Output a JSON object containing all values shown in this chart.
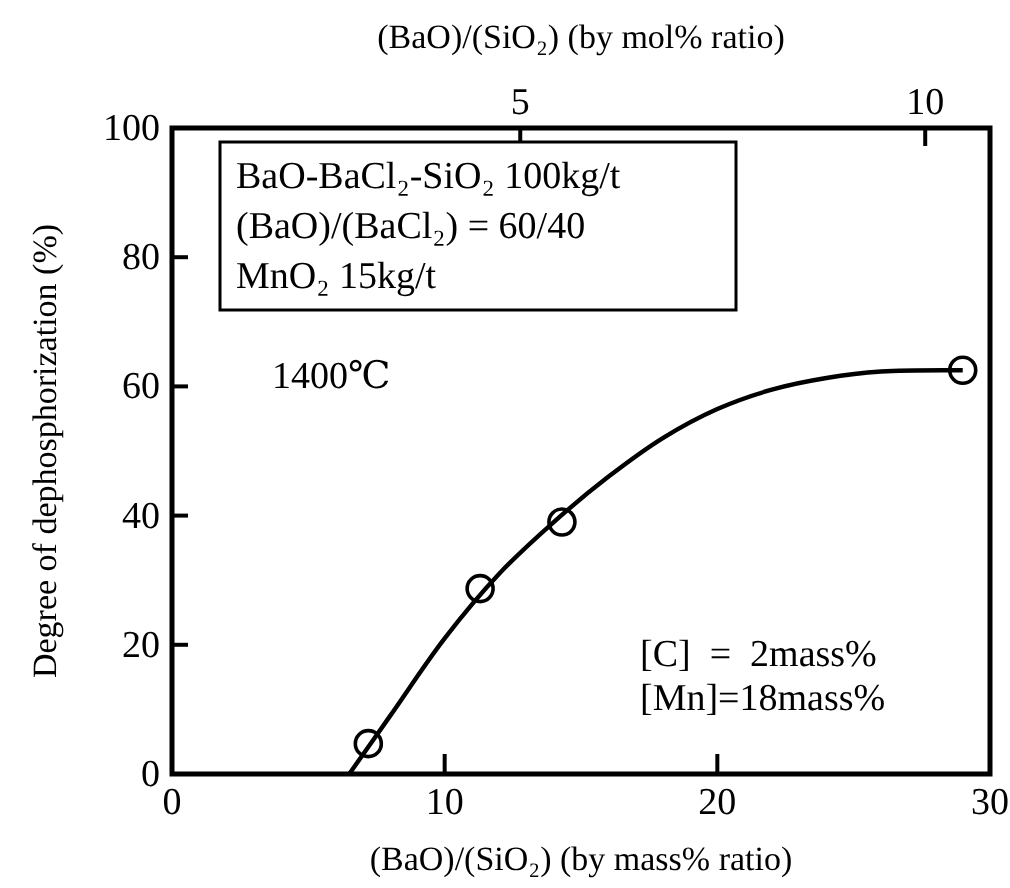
{
  "chart_data": {
    "type": "scatter",
    "xlabel": "(BaO)/(SiO₂) (by mass% ratio)",
    "x2label": "(BaO)/(SiO₂) (by mol% ratio)",
    "ylabel": "Degree of dephosphorization (%)",
    "xlim": [
      0,
      30
    ],
    "xticks": [
      0,
      10,
      20,
      30
    ],
    "ylim": [
      0,
      100
    ],
    "yticks": [
      0,
      20,
      40,
      60,
      80,
      100
    ],
    "x2lim": [
      0.7,
      10.8
    ],
    "x2ticks": [
      5,
      10
    ],
    "grid": false,
    "annotations": [
      "BaO-BaCl₂-SiO₂ 100kg/t",
      "(BaO)/(BaCl₂) = 60/40",
      "MnO₂ 15kg/t",
      "1400℃",
      "[C]  =  2mass%",
      "[Mn]=18mass%"
    ],
    "series": [
      {
        "color": "#000000",
        "marker": "circle",
        "x": [
          7.2,
          11.3,
          14.3,
          29
        ],
        "values": [
          4.7,
          28.7,
          39,
          62.5
        ]
      },
      {
        "type": "line",
        "color": "#000000",
        "marker": "none",
        "line_style": "solid",
        "x": [
          6.5,
          8,
          10,
          12,
          14,
          16,
          18,
          20,
          22,
          24,
          26,
          29
        ],
        "values": [
          0,
          9,
          21,
          31,
          39,
          46,
          52,
          56.5,
          59.5,
          61.3,
          62.3,
          62.5
        ]
      }
    ]
  }
}
